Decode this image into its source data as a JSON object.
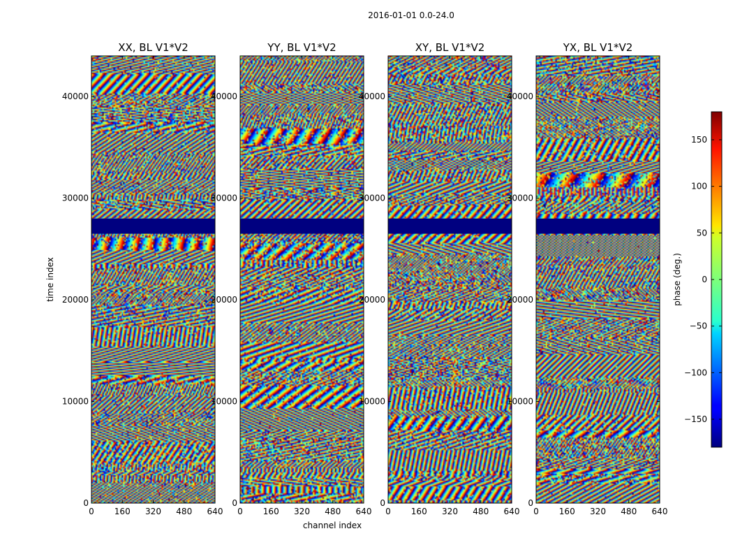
{
  "chart_data": {
    "type": "heatmap",
    "suptitle": "2016-01-01 0.0-24.0",
    "xlabel": "channel index",
    "ylabel": "time index",
    "xlim": [
      0,
      640
    ],
    "ylim": [
      0,
      44000
    ],
    "x_ticks": [
      0,
      160,
      320,
      480,
      640
    ],
    "y_ticks": [
      0,
      10000,
      20000,
      30000,
      40000
    ],
    "panels": [
      {
        "title": "XX, BL V1*V2"
      },
      {
        "title": "YY, BL V1*V2"
      },
      {
        "title": "XY, BL V1*V2"
      },
      {
        "title": "YX, BL V1*V2"
      }
    ],
    "colorbar": {
      "label": "phase (deg.)",
      "colormap": "jet",
      "range": [
        -180,
        180
      ],
      "ticks": [
        -150,
        -100,
        -50,
        0,
        50,
        100,
        150
      ],
      "tick_labels": [
        "−150",
        "−100",
        "−50",
        "0",
        "50",
        "100",
        "150"
      ]
    },
    "flagged_time_ranges": [
      {
        "start": 26500,
        "end": 28000,
        "phase": -180
      }
    ]
  }
}
